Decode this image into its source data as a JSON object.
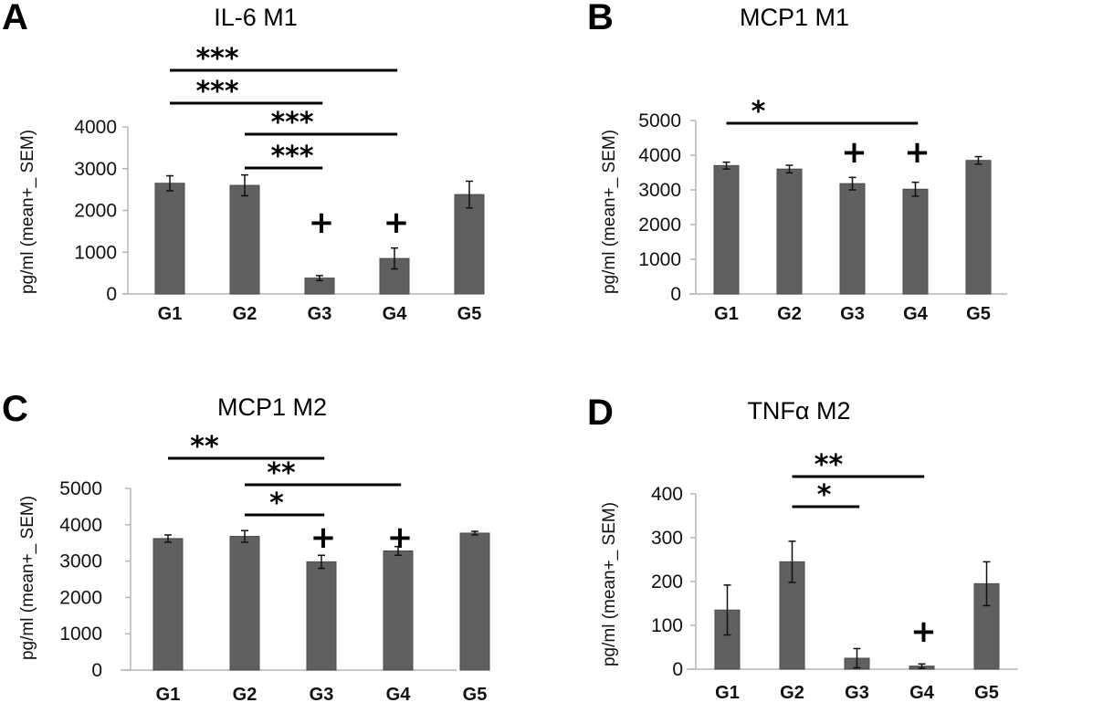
{
  "style": {
    "bar_color": "#606060",
    "bar_edge": "#4a4a4a",
    "axis_color": "#b5b5b5",
    "sig_color": "#000000"
  },
  "chart_data": [
    {
      "panel": "A",
      "type": "bar",
      "title": "IL-6 M1",
      "ylabel": "pg/ml (mean+_ SEM)",
      "xlabel": "",
      "categories": [
        "G1",
        "G2",
        "G3",
        "G4",
        "G5"
      ],
      "values": [
        2650,
        2600,
        380,
        850,
        2380
      ],
      "errors": [
        180,
        250,
        60,
        250,
        320
      ],
      "ylim": [
        0,
        4000
      ],
      "yticks": [
        0,
        1000,
        2000,
        3000,
        4000
      ],
      "ytick_labels": [
        "0",
        "1000",
        "2000",
        "3000",
        "4000"
      ],
      "grid": false,
      "plus_markers": [
        "G3",
        "G4"
      ],
      "significance": [
        {
          "from": "G1",
          "to": "G4",
          "label": "***"
        },
        {
          "from": "G1",
          "to": "G3",
          "label": "***"
        },
        {
          "from": "G2",
          "to": "G4",
          "label": "***"
        },
        {
          "from": "G2",
          "to": "G3",
          "label": "***"
        }
      ]
    },
    {
      "panel": "B",
      "type": "bar",
      "title": "MCP1 M1",
      "ylabel": "pg/ml (mean+_ SEM)",
      "xlabel": "",
      "categories": [
        "G1",
        "G2",
        "G3",
        "G4",
        "G5"
      ],
      "values": [
        3700,
        3600,
        3180,
        3020,
        3850
      ],
      "errors": [
        100,
        110,
        180,
        200,
        110
      ],
      "ylim": [
        0,
        5000
      ],
      "yticks": [
        0,
        1000,
        2000,
        3000,
        4000,
        5000
      ],
      "ytick_labels": [
        "0",
        "1000",
        "2000",
        "3000",
        "4000",
        "5000"
      ],
      "grid": false,
      "plus_markers": [
        "G3",
        "G4"
      ],
      "significance": [
        {
          "from": "G1",
          "to": "G4",
          "label": "*"
        }
      ]
    },
    {
      "panel": "C",
      "type": "bar",
      "title": "MCP1 M2",
      "ylabel": "pg/ml (mean+_ SEM)",
      "xlabel": "",
      "categories": [
        "G1",
        "G2",
        "G3",
        "G4",
        "G5"
      ],
      "values": [
        3620,
        3680,
        2980,
        3280,
        3770
      ],
      "errors": [
        100,
        160,
        180,
        120,
        50
      ],
      "ylim": [
        0,
        5000
      ],
      "yticks": [
        0,
        1000,
        2000,
        3000,
        4000,
        5000
      ],
      "ytick_labels": [
        "0",
        "1000",
        "2000",
        "3000",
        "4000",
        "5000"
      ],
      "grid": false,
      "plus_markers": [
        "G3",
        "G4"
      ],
      "significance": [
        {
          "from": "G1",
          "to": "G3",
          "label": "**"
        },
        {
          "from": "G2",
          "to": "G4",
          "label": "**"
        },
        {
          "from": "G2",
          "to": "G3",
          "label": "*"
        }
      ]
    },
    {
      "panel": "D",
      "type": "bar",
      "title": "TNFα  M2",
      "ylabel": "pg/ml (mean+_ SEM)",
      "xlabel": "",
      "categories": [
        "G1",
        "G2",
        "G3",
        "G4",
        "G5"
      ],
      "values": [
        135,
        245,
        25,
        7,
        195
      ],
      "errors": [
        57,
        47,
        22,
        5,
        50
      ],
      "ylim": [
        0,
        400
      ],
      "yticks": [
        0,
        100,
        200,
        300,
        400
      ],
      "ytick_labels": [
        "0",
        "100",
        "200",
        "300",
        "400"
      ],
      "grid": false,
      "plus_markers": [
        "G4"
      ],
      "significance": [
        {
          "from": "G2",
          "to": "G4",
          "label": "**"
        },
        {
          "from": "G2",
          "to": "G3",
          "label": "*"
        }
      ]
    }
  ]
}
